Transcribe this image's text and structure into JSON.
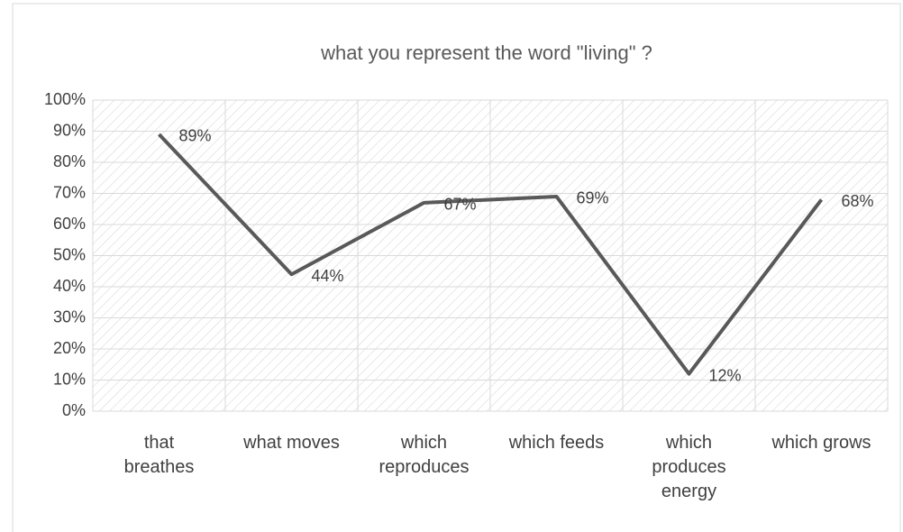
{
  "chart_data": {
    "type": "line",
    "title": "what you represent the word \"living\" ?",
    "categories": [
      "that breathes",
      "what moves",
      "which reproduces",
      "which feeds",
      "which produces energy",
      "which grows"
    ],
    "values": [
      89,
      44,
      67,
      69,
      12,
      68
    ],
    "value_labels": [
      "89%",
      "44%",
      "67%",
      "69%",
      "12%",
      "68%"
    ],
    "color": "#595959",
    "ylim": [
      0,
      100
    ],
    "yticks": [
      {
        "value": 0,
        "label": "0%"
      },
      {
        "value": 10,
        "label": "10%"
      },
      {
        "value": 20,
        "label": "20%"
      },
      {
        "value": 30,
        "label": "30%"
      },
      {
        "value": 40,
        "label": "40%"
      },
      {
        "value": 50,
        "label": "50%"
      },
      {
        "value": 60,
        "label": "60%"
      },
      {
        "value": 70,
        "label": "70%"
      },
      {
        "value": 80,
        "label": "80%"
      },
      {
        "value": 90,
        "label": "90%"
      },
      {
        "value": 100,
        "label": "100%"
      }
    ],
    "grid": true
  }
}
